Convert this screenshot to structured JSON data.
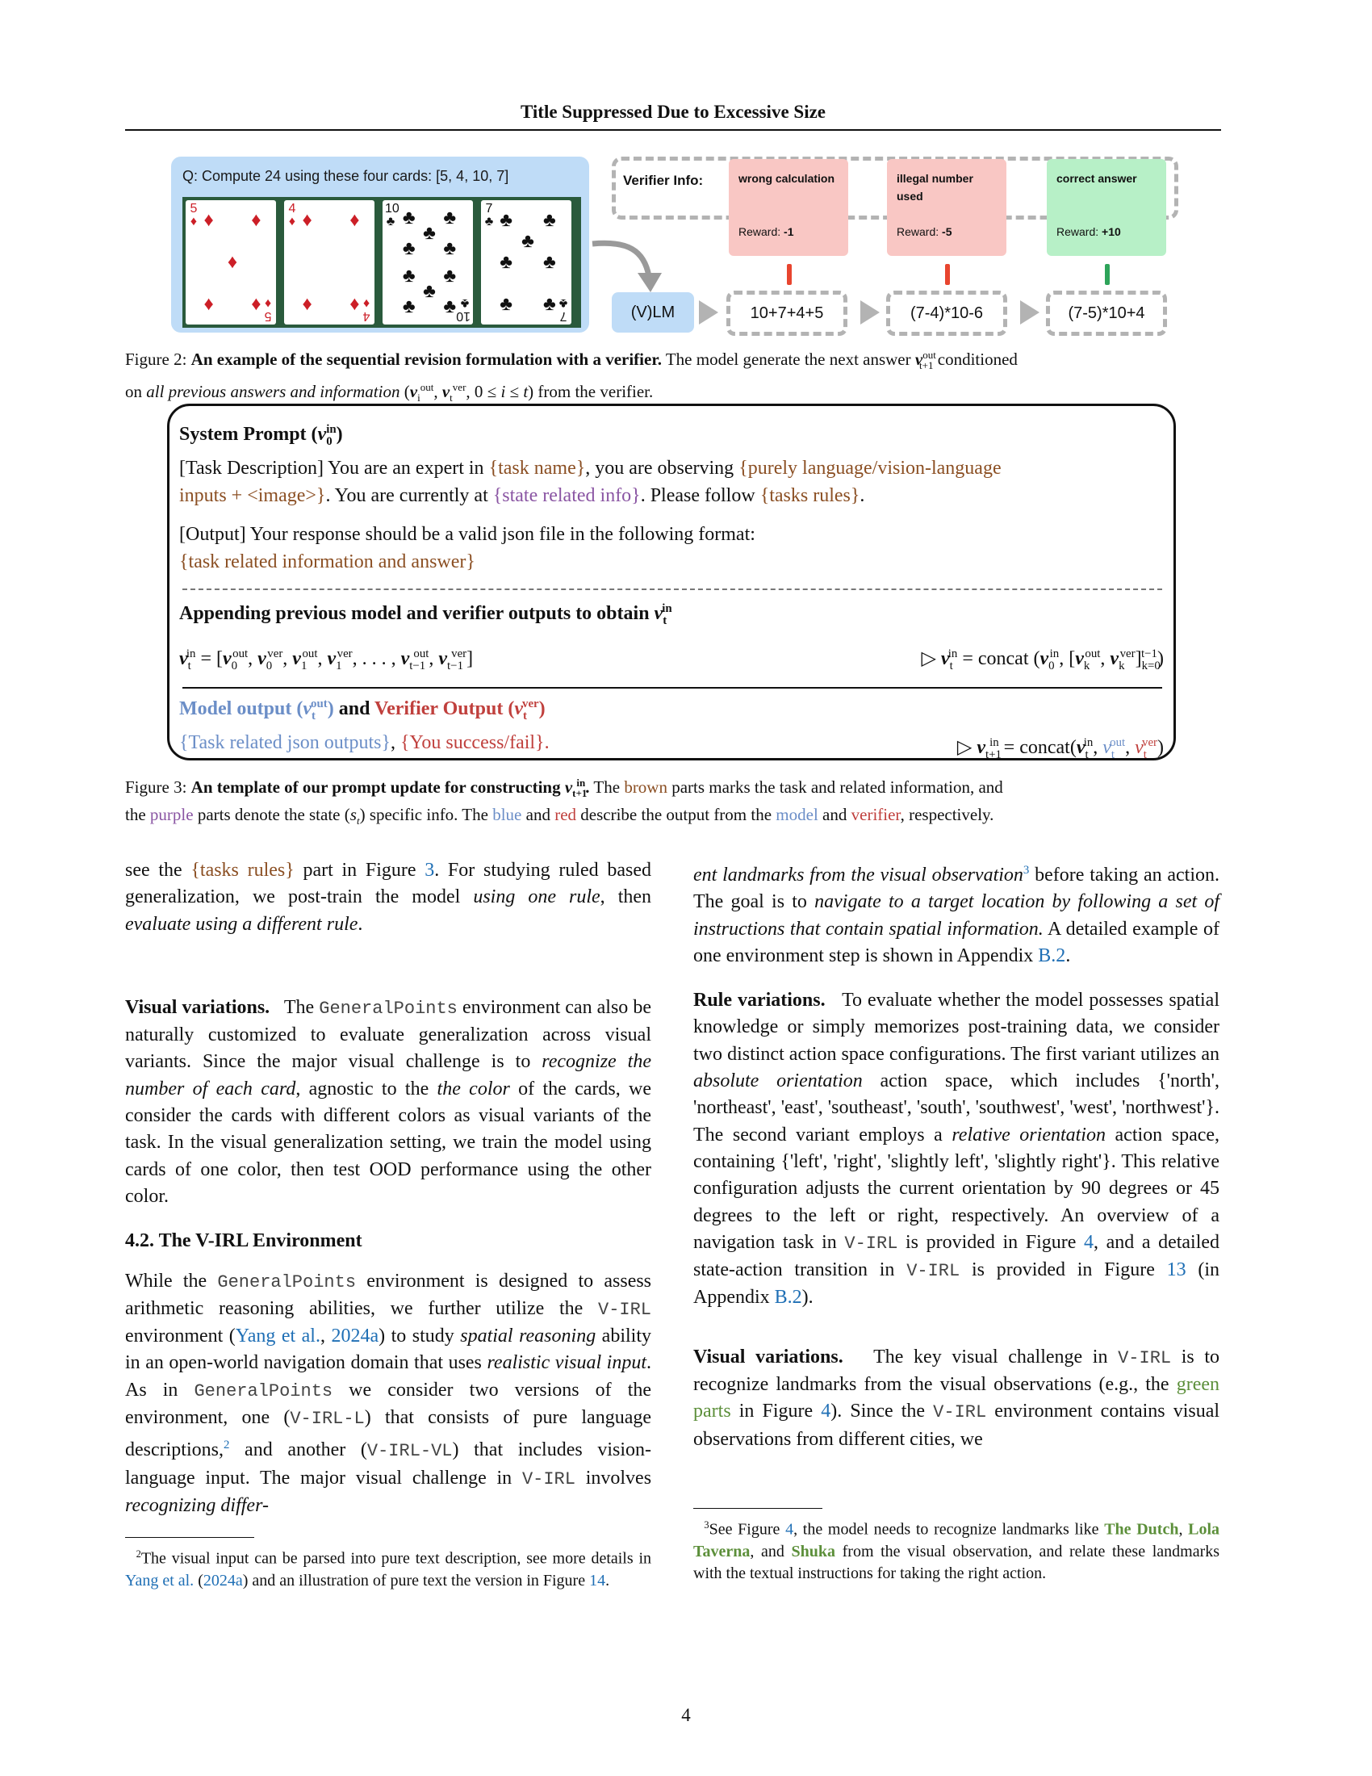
{
  "header": {
    "running_title": "Title Suppressed Due to Excessive Size"
  },
  "figure2": {
    "question": "Q: Compute 24 using these four cards: [5, 4, 10, 7]",
    "cards": [
      {
        "rank": "5",
        "suit": "diamonds-icon"
      },
      {
        "rank": "4",
        "suit": "diamonds-icon"
      },
      {
        "rank": "10",
        "suit": "clubs-icon"
      },
      {
        "rank": "7",
        "suit": "clubs-icon"
      }
    ],
    "verifier_label": "Verifier Info:",
    "verifier_cards": [
      {
        "title": "wrong calculation",
        "reward_label": "Reward:",
        "reward_value": "-1",
        "color": "#f9c7c4"
      },
      {
        "title": "illegal number used",
        "reward_label": "Reward:",
        "reward_value": "-5",
        "color": "#f9c7c4"
      },
      {
        "title": "correct answer",
        "reward_label": "Reward:",
        "reward_value": "+10",
        "color": "#b7f0c7"
      }
    ],
    "model_label": "(V)LM",
    "answers": [
      "10+7+4+5",
      "(7-4)*10-6",
      "(7-5)*10+4"
    ],
    "caption_prefix": "Figure 2:",
    "caption_bold": "An example of the sequential revision formulation with a verifier.",
    "caption_rest_1": "The model generate the next answer",
    "caption_rest_2": "conditioned",
    "caption_line2_a": "on",
    "caption_line2_italic": "all previous answers and information",
    "caption_line2_b": "from the verifier."
  },
  "figure3": {
    "system_prompt_title": "System Prompt",
    "task_desc_1": "[Task Description] You are an expert in",
    "task_name": "{task name}",
    "task_desc_2": ", you are observing",
    "inputs": "{purely language/vision-language",
    "inputs_2": "inputs + <image>}",
    "task_desc_3": ". You are currently at",
    "state_info": "{state related info}",
    "task_desc_4": ". Please follow",
    "tasks_rules": "{tasks rules}",
    "task_desc_5": ".",
    "output_line": "[Output] Your response should be a valid json file in the following format:",
    "output_placeholder": "{task related information and answer}",
    "append_title": "Appending previous model and verifier outputs to obtain",
    "model_output_title": "Model output",
    "and_word": "and",
    "verifier_output_title": "Verifier Output",
    "json_outputs": "{Task related json outputs}",
    "comma": ",",
    "success_fail": "{You success/fail}",
    "period": ".",
    "caption_prefix": "Figure 3:",
    "caption_bold": "An template of our prompt update for constructing",
    "caption_rest_a": "The",
    "caption_brown": "brown",
    "caption_rest_b": "parts marks the task and related information, and",
    "caption_line2_a": "the",
    "caption_purple": "purple",
    "caption_line2_b": "parts denote the state",
    "caption_line2_c": "specific info. The",
    "caption_blue": "blue",
    "caption_and": "and",
    "caption_red": "red",
    "caption_line2_d": "describe the output from the",
    "caption_model": "model",
    "caption_and2": "and",
    "caption_verifier": "verifier",
    "caption_line2_e": ", respectively."
  },
  "left_column": {
    "p1_a": "see the",
    "p1_rules": "{tasks rules}",
    "p1_b": "part in Figure",
    "p1_fig": "3",
    "p1_c": ". For studying ruled based generalization, we post-train the model",
    "p1_italic1": "using one rule",
    "p1_d": ", then",
    "p1_italic2": "evaluate using a different rule",
    "p1_e": ".",
    "p2_heading": "Visual variations.",
    "p2_a": "The",
    "p2_mono": "GeneralPoints",
    "p2_b": "environment can also be naturally customized to evaluate generalization across visual variants. Since the major visual challenge is to",
    "p2_italic1": "recognize the number of each card",
    "p2_c": ", agnostic to the",
    "p2_italic2": "the color",
    "p2_d": "of the cards, we consider the cards with different colors as visual variants of the task. In the visual generalization setting, we train the model using cards of one color, then test OOD performance using the other color.",
    "section_heading": "4.2. The V-IRL Environment",
    "p3_a": "While the",
    "p3_mono1": "GeneralPoints",
    "p3_b": "environment is designed to assess arithmetic reasoning abilities, we further utilize the",
    "p3_mono2": "V-IRL",
    "p3_c": "environment (",
    "p3_cite1": "Yang et al.",
    "p3_cite_sep": ",",
    "p3_cite2": "2024a",
    "p3_d": ") to study",
    "p3_italic1": "spatial reasoning",
    "p3_e": "ability in an open-world navigation domain that uses",
    "p3_italic2": "realistic visual input",
    "p3_f": ". As in",
    "p3_mono3": "GeneralPoints",
    "p3_g": "we consider two versions of the environment, one (",
    "p3_mono4": "V-IRL-L",
    "p3_h": ") that consists of pure language descriptions,",
    "p3_fn": "2",
    "p3_i": "and another (",
    "p3_mono5": "V-IRL-VL",
    "p3_j": ") that includes vision-language input. The major visual challenge in",
    "p3_mono6": "V-IRL",
    "p3_k": "involves",
    "p3_italic3": "recognizing differ-",
    "fn2_num": "2",
    "fn2_a": "The visual input can be parsed into pure text description, see more details in",
    "fn2_cite1": "Yang et al.",
    "fn2_paren_open": "(",
    "fn2_cite2": "2024a",
    "fn2_b": ") and an illustration of pure text the version in Figure",
    "fn2_fig": "14",
    "fn2_c": "."
  },
  "right_column": {
    "p1_italic": "ent landmarks from the visual observation",
    "p1_fn": "3",
    "p1_a": "before taking an action. The goal is to",
    "p1_italic2": "navigate to a target location by following a set of instructions that contain spatial information.",
    "p1_b": "A detailed example of one environment step is shown in Appendix",
    "p1_app": "B.2",
    "p1_c": ".",
    "p2_heading": "Rule variations.",
    "p2_a": "To evaluate whether the model possesses spatial knowledge or simply memorizes post-training data, we consider two distinct action space configurations. The first variant utilizes an",
    "p2_italic1": "absolute orientation",
    "p2_b": "action space, which includes {'north', 'northeast', 'east', 'southeast', 'south', 'southwest', 'west', 'northwest'}. The second variant employs a",
    "p2_italic2": "relative orientation",
    "p2_c": "action space, containing {'left', 'right', 'slightly left', 'slightly right'}. This relative configuration adjusts the current orientation by 90 degrees or 45 degrees to the left or right, respectively. An overview of a navigation task in",
    "p2_mono1": "V-IRL",
    "p2_d": "is provided in Figure",
    "p2_fig1": "4",
    "p2_e": ", and a detailed state-action transition in",
    "p2_mono2": "V-IRL",
    "p2_f": "is provided in Figure",
    "p2_fig2": "13",
    "p2_g": "(in Appendix",
    "p2_app": "B.2",
    "p2_h": ").",
    "p3_heading": "Visual variations.",
    "p3_a": "The key visual challenge in",
    "p3_mono1": "V-IRL",
    "p3_b": "is to recognize landmarks from the visual observations (e.g., the",
    "p3_green": "green parts",
    "p3_c": "in Figure",
    "p3_fig": "4",
    "p3_d": "). Since the",
    "p3_mono2": "V-IRL",
    "p3_e": "environment contains visual observations from different cities, we",
    "fn3_num": "3",
    "fn3_a": "See Figure",
    "fn3_fig": "4",
    "fn3_b": ", the model needs to recognize landmarks like",
    "fn3_l1": "The Dutch",
    "fn3_sep1": ",",
    "fn3_l2": "Lola Taverna",
    "fn3_sep2": ", and",
    "fn3_l3": "Shuka",
    "fn3_c": "from the visual observation, and relate these landmarks with the textual instructions for taking the right action."
  },
  "page_number": "4"
}
